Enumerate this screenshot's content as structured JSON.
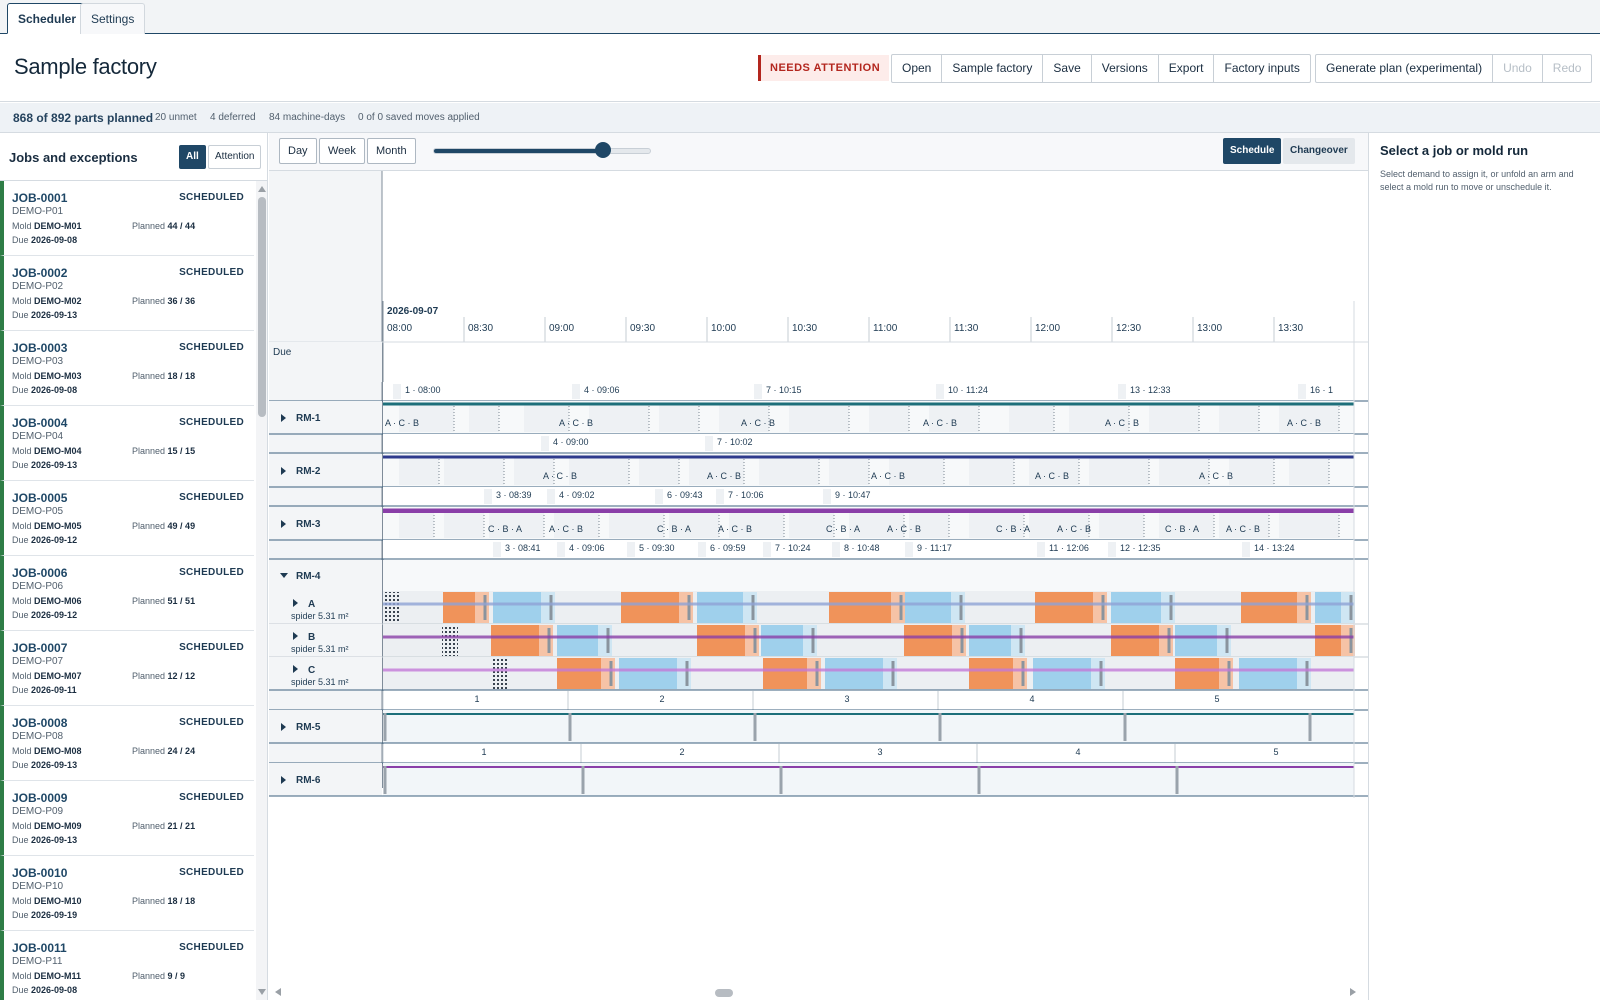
{
  "tabs": [
    {
      "label": "Scheduler",
      "active": true
    },
    {
      "label": "Settings",
      "active": false
    }
  ],
  "header": {
    "title": "Sample factory",
    "status_badge": "NEEDS ATTENTION",
    "file_buttons": [
      "Open",
      "Sample factory",
      "Save",
      "Versions",
      "Export",
      "Factory inputs"
    ],
    "plan_button": "Generate plan (experimental)",
    "undo": "Undo",
    "redo": "Redo"
  },
  "stats": {
    "planned": "868 of 892 parts planned",
    "unmet": "20 unmet",
    "deferred": "4 deferred",
    "machine_days": "84 machine-days",
    "moves": "0 of 0 saved moves applied"
  },
  "left_panel": {
    "title": "Jobs and exceptions",
    "filter_all": "All",
    "filter_attention": "Attention",
    "mold_label": "Mold",
    "planned_label": "Planned",
    "due_label": "Due",
    "jobs": [
      {
        "id": "JOB-0001",
        "status": "SCHEDULED",
        "part": "DEMO-P01",
        "mold": "DEMO-M01",
        "planned": "44 / 44",
        "due": "2026-09-08"
      },
      {
        "id": "JOB-0002",
        "status": "SCHEDULED",
        "part": "DEMO-P02",
        "mold": "DEMO-M02",
        "planned": "36 / 36",
        "due": "2026-09-13"
      },
      {
        "id": "JOB-0003",
        "status": "SCHEDULED",
        "part": "DEMO-P03",
        "mold": "DEMO-M03",
        "planned": "18 / 18",
        "due": "2026-09-08"
      },
      {
        "id": "JOB-0004",
        "status": "SCHEDULED",
        "part": "DEMO-P04",
        "mold": "DEMO-M04",
        "planned": "15 / 15",
        "due": "2026-09-13"
      },
      {
        "id": "JOB-0005",
        "status": "SCHEDULED",
        "part": "DEMO-P05",
        "mold": "DEMO-M05",
        "planned": "49 / 49",
        "due": "2026-09-12"
      },
      {
        "id": "JOB-0006",
        "status": "SCHEDULED",
        "part": "DEMO-P06",
        "mold": "DEMO-M06",
        "planned": "51 / 51",
        "due": "2026-09-12"
      },
      {
        "id": "JOB-0007",
        "status": "SCHEDULED",
        "part": "DEMO-P07",
        "mold": "DEMO-M07",
        "planned": "12 / 12",
        "due": "2026-09-11"
      },
      {
        "id": "JOB-0008",
        "status": "SCHEDULED",
        "part": "DEMO-P08",
        "mold": "DEMO-M08",
        "planned": "24 / 24",
        "due": "2026-09-13"
      },
      {
        "id": "JOB-0009",
        "status": "SCHEDULED",
        "part": "DEMO-P09",
        "mold": "DEMO-M09",
        "planned": "21 / 21",
        "due": "2026-09-13"
      },
      {
        "id": "JOB-0010",
        "status": "SCHEDULED",
        "part": "DEMO-P10",
        "mold": "DEMO-M10",
        "planned": "18 / 18",
        "due": "2026-09-19"
      },
      {
        "id": "JOB-0011",
        "status": "SCHEDULED",
        "part": "DEMO-P11",
        "mold": "DEMO-M11",
        "planned": "9 / 9",
        "due": "2026-09-08"
      }
    ]
  },
  "toolbar": {
    "day": "Day",
    "week": "Week",
    "month": "Month",
    "zoom_fraction": 0.78,
    "schedule": "Schedule",
    "changeover": "Changeover"
  },
  "timeline": {
    "date": "2026-09-07",
    "times": [
      "08:00",
      "08:30",
      "09:00",
      "09:30",
      "10:00",
      "10:30",
      "11:00",
      "11:30",
      "12:00",
      "12:30",
      "13:00",
      "13:30"
    ],
    "due_label": "Due"
  },
  "rows": {
    "rm1": {
      "label": "RM-1",
      "run_labels": [
        "1 · 08:00",
        "4 · 09:06",
        "7 · 10:15",
        "10 · 11:24",
        "13 · 12:33",
        "16 · 1"
      ],
      "sequence": "A · C · B"
    },
    "rm2": {
      "label": "RM-2",
      "run_labels": [
        "4 · 09:00",
        "7 · 10:02"
      ],
      "sequence": "A · C · B"
    },
    "rm3": {
      "label": "RM-3",
      "run_labels": [
        "3 · 08:39",
        "4 · 09:02",
        "6 · 09:43",
        "7 · 10:06",
        "9 · 10:47"
      ],
      "sequence_a": "C · B · A",
      "sequence_b": "A · C · B"
    },
    "rm4": {
      "label": "RM-4",
      "run_labels": [
        "3 · 08:41",
        "4 · 09:06",
        "5 · 09:30",
        "6 · 09:59",
        "7 · 10:24",
        "8 · 10:48",
        "9 · 11:17",
        "11 · 12:06",
        "12 · 12:35",
        "14 · 13:24"
      ],
      "arms": [
        {
          "name": "A",
          "desc": "spider 5.31 m²"
        },
        {
          "name": "B",
          "desc": "spider 5.31 m²"
        },
        {
          "name": "C",
          "desc": "spider 5.31 m²"
        }
      ]
    },
    "rm5": {
      "label": "RM-5",
      "runs": [
        "1",
        "2",
        "3",
        "4",
        "5"
      ]
    },
    "rm6": {
      "label": "RM-6",
      "runs": [
        "1",
        "2",
        "3",
        "4",
        "5"
      ]
    }
  },
  "right_panel": {
    "title": "Select a job or mold run",
    "description": "Select demand to assign it, or unfold an arm and select a mold run to move or unschedule it."
  },
  "colors": {
    "accent": "#1f4766",
    "scheduled_bar": "#2e7d46",
    "attention": "#b3261e",
    "orange": "#f0935a",
    "blue": "#9fd0ec",
    "teal_line": "#1d6f7a",
    "navy_line": "#2e3a8c",
    "purple_line": "#8a3fa8"
  }
}
